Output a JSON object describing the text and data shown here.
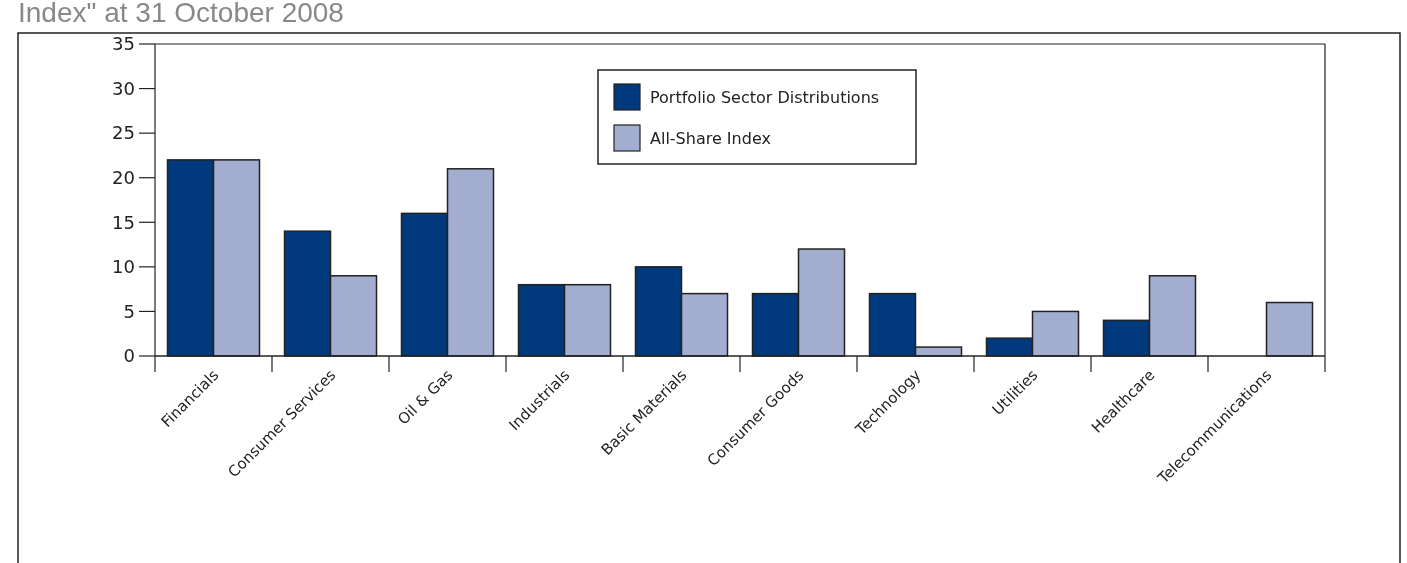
{
  "chart_data": {
    "type": "bar",
    "title": "Index\" at 31 October 2008",
    "categories": [
      "Financials",
      "Consumer Services",
      "Oil & Gas",
      "Industrials",
      "Basic Materials",
      "Consumer Goods",
      "Technology",
      "Utilities",
      "Healthcare",
      "Telecommunications"
    ],
    "series": [
      {
        "name": "Portfolio Sector Distributions",
        "color": "#003a7d",
        "values": [
          22,
          14,
          16,
          8,
          10,
          7,
          7,
          2,
          4,
          0
        ]
      },
      {
        "name": "All-Share Index",
        "color": "#a2adcf",
        "values": [
          22,
          9,
          21,
          8,
          7,
          12,
          1,
          5,
          9,
          6
        ]
      }
    ],
    "ylim": [
      0,
      35
    ],
    "yticks": [
      0,
      5,
      10,
      15,
      20,
      25,
      30,
      35
    ],
    "grid": false,
    "legend": "top"
  }
}
